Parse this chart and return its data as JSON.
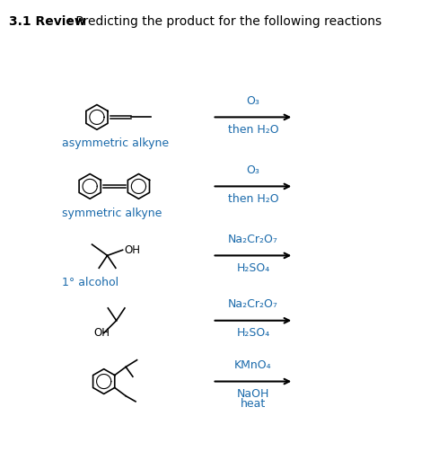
{
  "title_bold": "3.1 Review",
  "title_normal": " : Predicting the product for the following reactions",
  "title_color": "#000000",
  "title_bold_color": "#000000",
  "background_color": "#ffffff",
  "arrow_color": "#000000",
  "text_color": "#000000",
  "reagent_color": "#1a6aab",
  "label_color": "#1a6aab",
  "rows": [
    {
      "reagents_line1": "O₃",
      "reagents_line2": "then H₂O",
      "label": "asymmetric alkyne",
      "mol_type": "asymmetric_alkyne"
    },
    {
      "reagents_line1": "O₃",
      "reagents_line2": "then H₂O",
      "label": "symmetric alkyne",
      "mol_type": "symmetric_alkyne"
    },
    {
      "reagents_line1": "Na₂Cr₂O₇",
      "reagents_line2": "H₂SO₄",
      "label": "1° alcohol",
      "mol_type": "primary_alcohol"
    },
    {
      "reagents_line1": "Na₂Cr₂O₇",
      "reagents_line2": "H₂SO₄",
      "label": "",
      "mol_type": "secondary_alcohol"
    },
    {
      "reagents_line1": "KMnO₄",
      "reagents_line2_1": "NaOH",
      "reagents_line2_2": "heat",
      "label": "",
      "mol_type": "substituted_benzene"
    }
  ]
}
